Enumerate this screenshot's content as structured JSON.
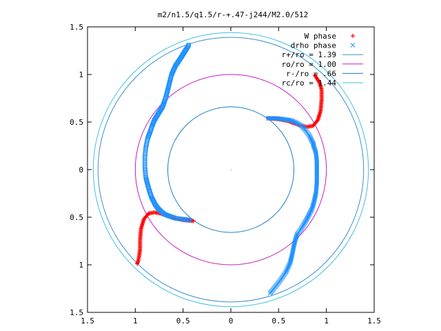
{
  "chart_data": {
    "type": "scatter",
    "title": "m2/n1.5/q1.5/r-+.47-j244/M2.0/512",
    "xlim": [
      -1.5,
      1.5
    ],
    "ylim": [
      -1.5,
      1.5
    ],
    "x_ticks": [
      -1.5,
      -1,
      -0.5,
      0,
      0.5,
      1,
      1.5
    ],
    "y_ticks": [
      -1.5,
      -1,
      -0.5,
      0,
      0.5,
      1,
      1.5
    ],
    "x_tick_labels": [
      "1.5",
      "1",
      "0.5",
      "0",
      "0.5",
      "1",
      "1.5"
    ],
    "y_tick_labels": [
      "1.5",
      "1",
      "0.5",
      "0",
      "0.5",
      "1",
      "1.5"
    ],
    "legend_position": "top-right",
    "grid": false,
    "series": [
      {
        "name": "W phase",
        "kind": "points",
        "marker": "plus",
        "color": "#ff0000",
        "arms": [
          [
            [
              0.39,
              0.54
            ],
            [
              0.5,
              0.53
            ],
            [
              0.6,
              0.51
            ],
            [
              0.68,
              0.48
            ],
            [
              0.74,
              0.46
            ],
            [
              0.8,
              0.45
            ],
            [
              0.86,
              0.46
            ],
            [
              0.91,
              0.52
            ],
            [
              0.94,
              0.62
            ],
            [
              0.95,
              0.74
            ],
            [
              0.95,
              0.84
            ],
            [
              0.93,
              0.91
            ],
            [
              0.9,
              0.96
            ],
            [
              0.88,
              0.99
            ]
          ],
          [
            [
              -0.39,
              -0.54
            ],
            [
              -0.5,
              -0.53
            ],
            [
              -0.6,
              -0.51
            ],
            [
              -0.68,
              -0.48
            ],
            [
              -0.74,
              -0.46
            ],
            [
              -0.8,
              -0.45
            ],
            [
              -0.86,
              -0.46
            ],
            [
              -0.91,
              -0.52
            ],
            [
              -0.94,
              -0.62
            ],
            [
              -0.95,
              -0.74
            ],
            [
              -0.95,
              -0.84
            ],
            [
              -0.96,
              -0.91
            ],
            [
              -0.97,
              -0.96
            ],
            [
              -0.98,
              -0.99
            ]
          ]
        ]
      },
      {
        "name": "drho phase",
        "kind": "points",
        "marker": "x",
        "color": "#1e90ff",
        "arms": [
          [
            [
              0.39,
              0.54
            ],
            [
              0.48,
              0.54
            ],
            [
              0.55,
              0.53
            ],
            [
              0.62,
              0.52
            ],
            [
              0.67,
              0.5
            ],
            [
              0.71,
              0.48
            ],
            [
              0.74,
              0.46
            ],
            [
              0.77,
              0.43
            ],
            [
              0.79,
              0.4
            ],
            [
              0.82,
              0.36
            ],
            [
              0.84,
              0.32
            ],
            [
              0.86,
              0.28
            ],
            [
              0.87,
              0.24
            ],
            [
              0.89,
              0.18
            ],
            [
              0.9,
              0.09
            ],
            [
              0.9,
              -0.03
            ],
            [
              0.9,
              -0.14
            ],
            [
              0.89,
              -0.25
            ],
            [
              0.87,
              -0.34
            ],
            [
              0.85,
              -0.41
            ],
            [
              0.82,
              -0.47
            ],
            [
              0.79,
              -0.53
            ],
            [
              0.76,
              -0.58
            ],
            [
              0.73,
              -0.63
            ],
            [
              0.7,
              -0.67
            ],
            [
              0.68,
              -0.72
            ],
            [
              0.66,
              -0.8
            ],
            [
              0.64,
              -0.9
            ],
            [
              0.62,
              -0.98
            ],
            [
              0.58,
              -1.07
            ],
            [
              0.52,
              -1.16
            ],
            [
              0.45,
              -1.25
            ],
            [
              0.41,
              -1.3
            ]
          ]
        ]
      },
      {
        "name": "drho phase",
        "kind": "points",
        "marker": "square",
        "color": "#1e90ff",
        "arms": [
          [
            [
              -0.43,
              -0.53
            ],
            [
              -0.51,
              -0.52
            ],
            [
              -0.58,
              -0.51
            ],
            [
              -0.64,
              -0.49
            ],
            [
              -0.69,
              -0.47
            ],
            [
              -0.73,
              -0.44
            ],
            [
              -0.76,
              -0.41
            ],
            [
              -0.79,
              -0.37
            ],
            [
              -0.81,
              -0.33
            ],
            [
              -0.83,
              -0.29
            ],
            [
              -0.85,
              -0.23
            ],
            [
              -0.87,
              -0.16
            ],
            [
              -0.89,
              -0.08
            ],
            [
              -0.9,
              0.03
            ],
            [
              -0.9,
              0.13
            ],
            [
              -0.89,
              0.23
            ],
            [
              -0.87,
              0.33
            ],
            [
              -0.84,
              0.41
            ],
            [
              -0.82,
              0.47
            ],
            [
              -0.8,
              0.52
            ],
            [
              -0.77,
              0.57
            ],
            [
              -0.74,
              0.62
            ],
            [
              -0.72,
              0.65
            ],
            [
              -0.7,
              0.7
            ],
            [
              -0.68,
              0.76
            ],
            [
              -0.66,
              0.84
            ],
            [
              -0.64,
              0.92
            ],
            [
              -0.62,
              1.0
            ],
            [
              -0.58,
              1.09
            ],
            [
              -0.52,
              1.18
            ],
            [
              -0.47,
              1.26
            ],
            [
              -0.44,
              1.31
            ]
          ]
        ]
      },
      {
        "name": "r+/ro = 1.39",
        "kind": "circle",
        "radius": 1.39,
        "color": "#3b8fd0"
      },
      {
        "name": "ro/ro = 1.00",
        "kind": "circle",
        "radius": 1.0,
        "color": "#c21dc2"
      },
      {
        "name": "r-/ro = .66",
        "kind": "circle",
        "radius": 0.66,
        "color": "#1c7fc7"
      },
      {
        "name": "rc/ro = 1.44",
        "kind": "circle",
        "radius": 1.44,
        "color": "#40c0e0"
      }
    ],
    "legend_entries": [
      {
        "label": "W phase",
        "marker": "plus",
        "color": "#ff0000"
      },
      {
        "label": "drho phase",
        "marker": "x",
        "color": "#1e90ff"
      },
      {
        "label": "r+/ro = 1.39",
        "marker": "line",
        "color": "#3b8fd0"
      },
      {
        "label": "ro/ro = 1.00",
        "marker": "line",
        "color": "#c21dc2"
      },
      {
        "label": "r-/ro = .66",
        "marker": "line",
        "color": "#1c7fc7"
      },
      {
        "label": "rc/ro = 1.44",
        "marker": "line",
        "color": "#40c0e0"
      }
    ],
    "marker_colors": {
      "W": "#ff0000",
      "drho": "#1e90ff"
    }
  }
}
